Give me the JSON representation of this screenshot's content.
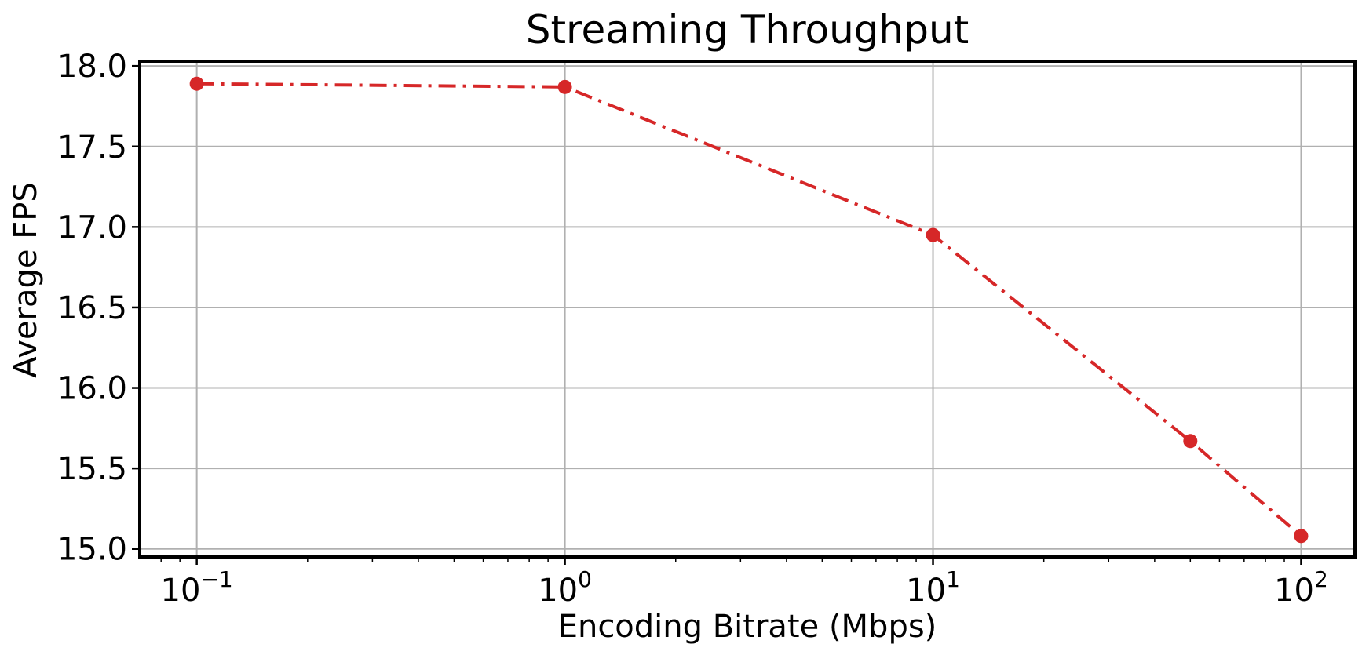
{
  "chart_data": {
    "type": "line",
    "title": "Streaming Throughput",
    "xlabel": "Encoding Bitrate (Mbps)",
    "ylabel": "Average FPS",
    "xscale": "log",
    "xlim": [
      0.07,
      140
    ],
    "ylim": [
      14.95,
      18.03
    ],
    "grid": true,
    "x_ticks": [
      {
        "value": 0.1,
        "base": "10",
        "exp": "−1"
      },
      {
        "value": 1,
        "base": "10",
        "exp": "0"
      },
      {
        "value": 10,
        "base": "10",
        "exp": "1"
      },
      {
        "value": 100,
        "base": "10",
        "exp": "2"
      }
    ],
    "y_ticks": [
      {
        "value": 15.0,
        "label": "15.0"
      },
      {
        "value": 15.5,
        "label": "15.5"
      },
      {
        "value": 16.0,
        "label": "16.0"
      },
      {
        "value": 16.5,
        "label": "16.5"
      },
      {
        "value": 17.0,
        "label": "17.0"
      },
      {
        "value": 17.5,
        "label": "17.5"
      },
      {
        "value": 18.0,
        "label": "18.0"
      }
    ],
    "series": [
      {
        "color": "#d62728",
        "line_style": "dash-dot",
        "marker": "circle",
        "x": [
          0.1,
          1,
          10,
          50,
          100
        ],
        "y": [
          17.89,
          17.87,
          16.95,
          15.67,
          15.08
        ]
      }
    ]
  }
}
